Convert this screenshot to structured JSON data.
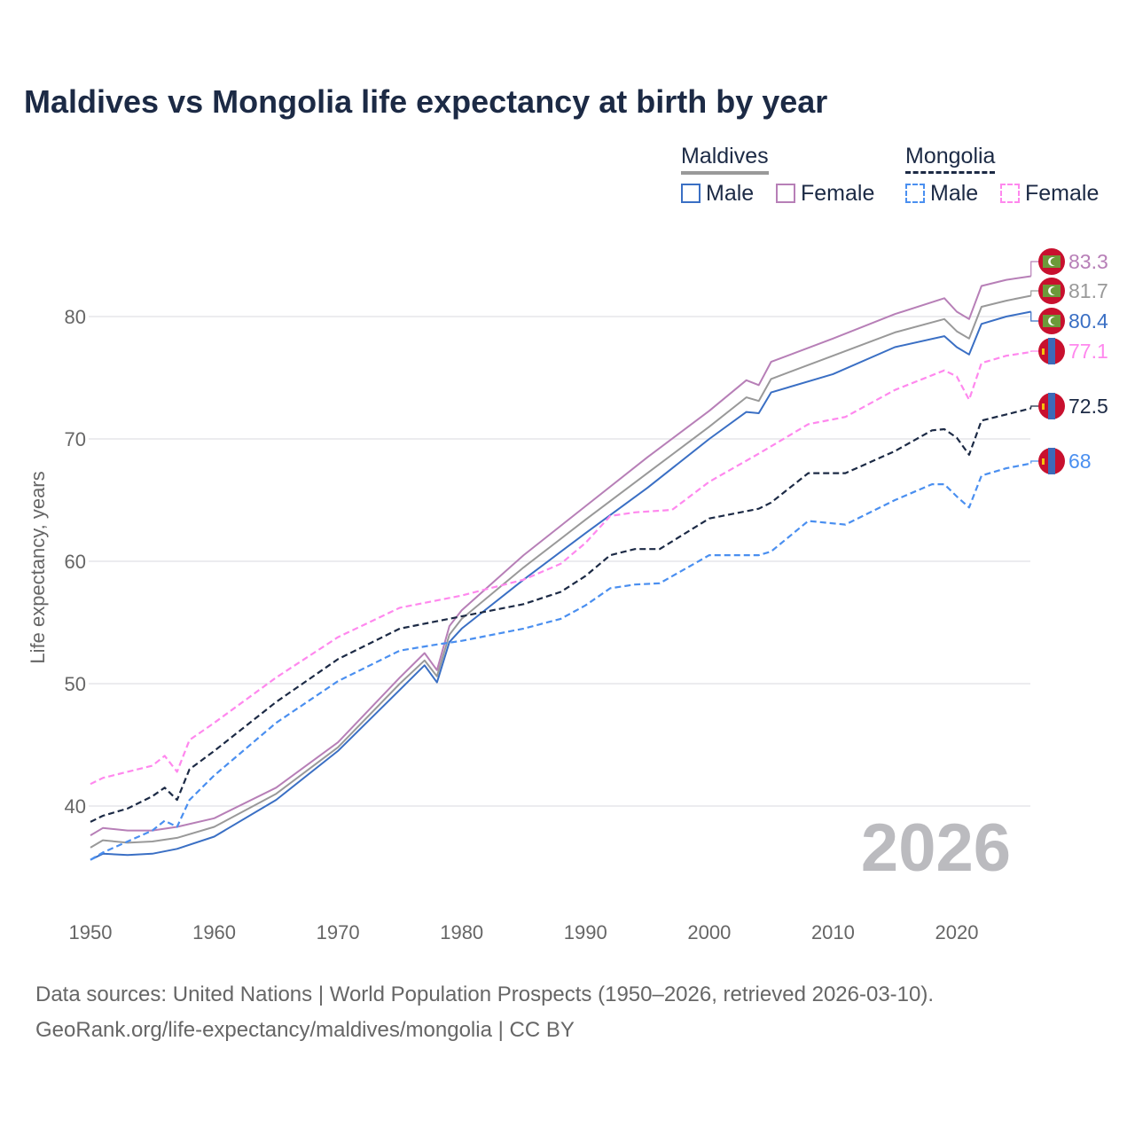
{
  "title": "Maldives vs Mongolia life expectancy at birth by year",
  "legend": {
    "groups": [
      {
        "name": "Maldives",
        "items": [
          "Male",
          "Female"
        ]
      },
      {
        "name": "Mongolia",
        "items": [
          "Male",
          "Female"
        ]
      }
    ]
  },
  "year_watermark": "2026",
  "source_line1": "Data sources: United Nations | World Population Prospects (1950–2026, retrieved 2026-03-10).",
  "source_line2": "GeoRank.org/life-expectancy/maldives/mongolia | CC BY",
  "chart_data": {
    "type": "line",
    "title": "Maldives vs Mongolia life expectancy at birth by year",
    "xlabel": "",
    "ylabel": "Life expectancy, years",
    "xlim": [
      1950,
      2026
    ],
    "ylim": [
      33,
      88
    ],
    "xticks": [
      1950,
      1960,
      1970,
      1980,
      1990,
      2000,
      2010,
      2020
    ],
    "yticks": [
      40,
      50,
      60,
      70,
      80
    ],
    "grid": true,
    "legend_position": "top-right",
    "series": [
      {
        "name": "Maldives Female",
        "color": "#b77fb7",
        "dash": false,
        "end_label": "83.3",
        "flag": "maldives",
        "x": [
          1950,
          1951,
          1953,
          1955,
          1957,
          1960,
          1965,
          1970,
          1975,
          1977,
          1978,
          1979,
          1980,
          1985,
          1990,
          1995,
          2000,
          2003,
          2004,
          2005,
          2010,
          2015,
          2019,
          2020,
          2021,
          2022,
          2024,
          2026
        ],
        "y": [
          37.6,
          38.2,
          38.0,
          38.0,
          38.3,
          39.0,
          41.5,
          45.2,
          50.5,
          52.5,
          51.1,
          54.7,
          56.0,
          60.5,
          64.5,
          68.5,
          72.3,
          74.8,
          74.4,
          76.3,
          78.2,
          80.2,
          81.5,
          80.4,
          79.8,
          82.5,
          83.0,
          83.3
        ]
      },
      {
        "name": "Maldives",
        "color": "#999999",
        "dash": false,
        "end_label": "81.7",
        "flag": "maldives",
        "x": [
          1950,
          1951,
          1953,
          1955,
          1957,
          1960,
          1965,
          1970,
          1975,
          1977,
          1978,
          1979,
          1980,
          1985,
          1990,
          1995,
          2000,
          2003,
          2004,
          2005,
          2010,
          2015,
          2019,
          2020,
          2021,
          2022,
          2024,
          2026
        ],
        "y": [
          36.6,
          37.2,
          37.0,
          37.1,
          37.4,
          38.3,
          41.0,
          44.8,
          50.0,
          51.9,
          50.6,
          54.0,
          55.3,
          59.5,
          63.4,
          67.2,
          71.0,
          73.4,
          73.1,
          74.9,
          76.8,
          78.7,
          79.8,
          78.8,
          78.2,
          80.8,
          81.3,
          81.7
        ]
      },
      {
        "name": "Maldives Male",
        "color": "#3a6fc4",
        "dash": false,
        "end_label": "80.4",
        "flag": "maldives",
        "x": [
          1950,
          1951,
          1953,
          1955,
          1957,
          1960,
          1965,
          1970,
          1975,
          1977,
          1978,
          1979,
          1980,
          1985,
          1990,
          1995,
          2000,
          2003,
          2004,
          2005,
          2010,
          2015,
          2019,
          2020,
          2021,
          2022,
          2024,
          2026
        ],
        "y": [
          35.6,
          36.1,
          36.0,
          36.1,
          36.5,
          37.5,
          40.5,
          44.5,
          49.5,
          51.5,
          50.1,
          53.4,
          54.5,
          58.5,
          62.3,
          66.0,
          70.0,
          72.2,
          72.1,
          73.8,
          75.3,
          77.5,
          78.4,
          77.5,
          76.9,
          79.4,
          80.0,
          80.4
        ]
      },
      {
        "name": "Mongolia Female",
        "color": "#ff88ee",
        "dash": true,
        "end_label": "77.1",
        "flag": "mongolia",
        "x": [
          1950,
          1951,
          1955,
          1956,
          1957,
          1958,
          1960,
          1965,
          1970,
          1975,
          1980,
          1985,
          1988,
          1990,
          1992,
          1994,
          1997,
          2000,
          2004,
          2008,
          2011,
          2015,
          2019,
          2020,
          2021,
          2022,
          2024,
          2026
        ],
        "y": [
          41.8,
          42.3,
          43.3,
          44.1,
          42.8,
          45.4,
          46.8,
          50.5,
          53.8,
          56.2,
          57.2,
          58.5,
          59.8,
          61.5,
          63.7,
          64.0,
          64.2,
          66.5,
          68.8,
          71.2,
          71.8,
          74.0,
          75.6,
          75.1,
          73.2,
          76.2,
          76.8,
          77.1
        ]
      },
      {
        "name": "Mongolia",
        "color": "#1c2a45",
        "dash": true,
        "end_label": "72.5",
        "flag": "mongolia",
        "x": [
          1950,
          1951,
          1953,
          1955,
          1956,
          1957,
          1958,
          1960,
          1965,
          1970,
          1975,
          1978,
          1980,
          1985,
          1988,
          1990,
          1992,
          1994,
          1996,
          2000,
          2004,
          2005,
          2008,
          2011,
          2015,
          2018,
          2019,
          2020,
          2021,
          2022,
          2024,
          2026
        ],
        "y": [
          38.7,
          39.2,
          39.8,
          40.8,
          41.5,
          40.5,
          43.0,
          44.5,
          48.5,
          52.0,
          54.5,
          55.1,
          55.5,
          56.5,
          57.5,
          58.8,
          60.5,
          61.0,
          61.0,
          63.5,
          64.3,
          64.8,
          67.2,
          67.2,
          69.0,
          70.7,
          70.8,
          70.1,
          68.7,
          71.5,
          72.0,
          72.5
        ]
      },
      {
        "name": "Mongolia Male",
        "color": "#4a8ff0",
        "dash": true,
        "end_label": "68",
        "flag": "mongolia",
        "x": [
          1950,
          1951,
          1955,
          1956,
          1957,
          1958,
          1960,
          1965,
          1970,
          1975,
          1978,
          1980,
          1985,
          1988,
          1990,
          1992,
          1994,
          1996,
          2000,
          2004,
          2005,
          2008,
          2011,
          2015,
          2018,
          2019,
          2020,
          2021,
          2022,
          2024,
          2026
        ],
        "y": [
          35.6,
          36.2,
          38.0,
          38.8,
          38.3,
          40.5,
          42.5,
          46.8,
          50.2,
          52.7,
          53.2,
          53.5,
          54.5,
          55.3,
          56.4,
          57.8,
          58.1,
          58.2,
          60.5,
          60.5,
          60.8,
          63.3,
          63.0,
          65.0,
          66.3,
          66.3,
          65.3,
          64.4,
          67.0,
          67.6,
          68.0
        ]
      }
    ]
  }
}
